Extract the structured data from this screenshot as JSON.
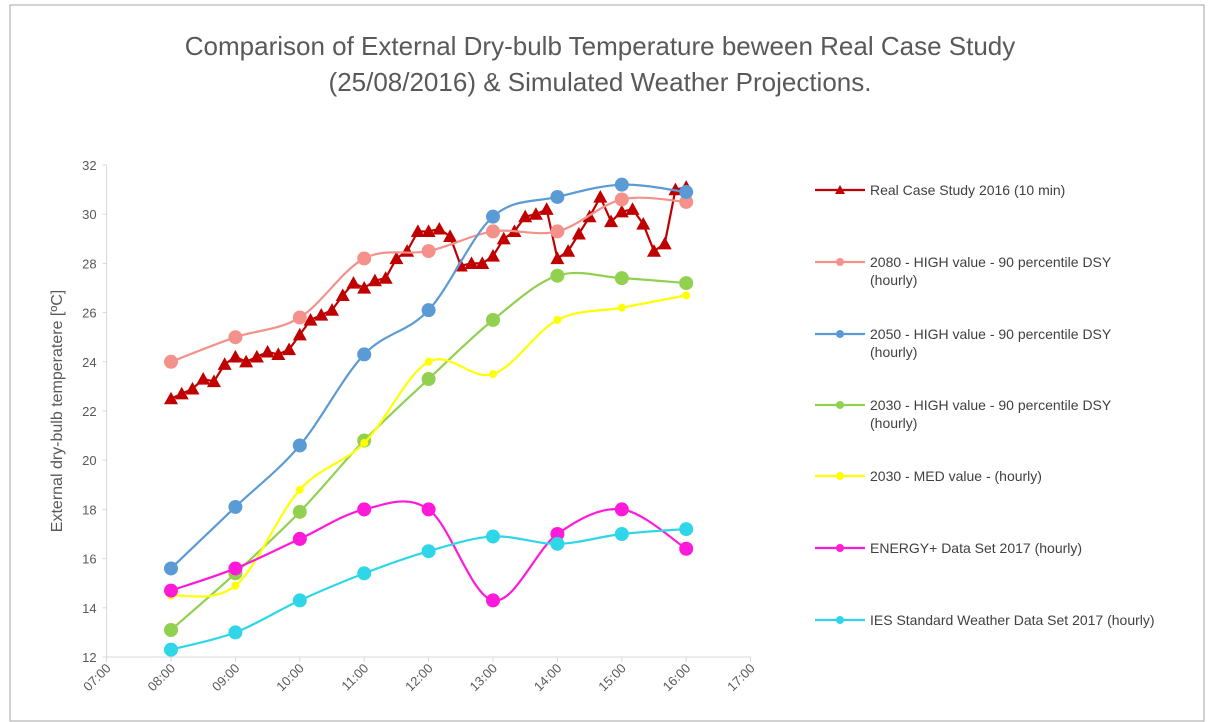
{
  "chart_data": {
    "type": "line",
    "title": "Comparison of External Dry-bulb Temperature beween Real Case Study (25/08/2016) & Simulated Weather Projections.",
    "y_label": "External dry-bulb temperatere [ºC]",
    "xlim": [
      "07:00",
      "17:00"
    ],
    "xticks": [
      "07:00",
      "08:00",
      "09:00",
      "10:00",
      "11:00",
      "12:00",
      "13:00",
      "14:00",
      "15:00",
      "16:00",
      "17:00"
    ],
    "ylim": [
      12,
      32
    ],
    "yticks": [
      12,
      14,
      16,
      18,
      20,
      22,
      24,
      26,
      28,
      30,
      32
    ],
    "grid": false,
    "legend": "right",
    "series": [
      {
        "name": "Real Case Study 2016 (10 min)",
        "color": "#c00000",
        "marker": "triangle",
        "smooth": false,
        "x": [
          "08:00",
          "08:10",
          "08:20",
          "08:30",
          "08:40",
          "08:50",
          "09:00",
          "09:10",
          "09:20",
          "09:30",
          "09:40",
          "09:50",
          "10:00",
          "10:10",
          "10:20",
          "10:30",
          "10:40",
          "10:50",
          "11:00",
          "11:10",
          "11:20",
          "11:30",
          "11:40",
          "11:50",
          "12:00",
          "12:10",
          "12:20",
          "12:30",
          "12:40",
          "12:50",
          "13:00",
          "13:10",
          "13:20",
          "13:30",
          "13:40",
          "13:50",
          "14:00",
          "14:10",
          "14:20",
          "14:30",
          "14:40",
          "14:50",
          "15:00",
          "15:10",
          "15:20",
          "15:30",
          "15:40",
          "15:50",
          "16:00"
        ],
        "values": [
          22.5,
          22.7,
          22.9,
          23.3,
          23.2,
          23.9,
          24.2,
          24.0,
          24.2,
          24.4,
          24.3,
          24.5,
          25.1,
          25.7,
          25.9,
          26.1,
          26.7,
          27.2,
          27.0,
          27.3,
          27.4,
          28.2,
          28.5,
          29.3,
          29.3,
          29.4,
          29.1,
          27.9,
          28.0,
          28.0,
          28.3,
          29.0,
          29.3,
          29.9,
          30.0,
          30.2,
          28.2,
          28.5,
          29.2,
          29.9,
          30.7,
          29.7,
          30.1,
          30.2,
          29.6,
          28.5,
          28.8,
          31.0,
          31.1
        ]
      },
      {
        "name": "2080 - HIGH value - 90 percentile DSY (hourly)",
        "color": "#f4918b",
        "marker": "circle",
        "smooth": true,
        "x": [
          "08:00",
          "09:00",
          "10:00",
          "11:00",
          "12:00",
          "13:00",
          "14:00",
          "15:00",
          "16:00"
        ],
        "values": [
          24.0,
          25.0,
          25.8,
          28.2,
          28.5,
          29.3,
          29.3,
          30.6,
          30.5
        ]
      },
      {
        "name": "2050 - HIGH value - 90 percentile DSY (hourly)",
        "color": "#5b9bd5",
        "marker": "circle",
        "smooth": true,
        "x": [
          "08:00",
          "09:00",
          "10:00",
          "11:00",
          "12:00",
          "13:00",
          "14:00",
          "15:00",
          "16:00"
        ],
        "values": [
          15.6,
          18.1,
          20.6,
          24.3,
          26.1,
          29.9,
          30.7,
          31.2,
          30.9
        ]
      },
      {
        "name": "2030 - HIGH value - 90 percentile DSY (hourly)",
        "color": "#92d050",
        "marker": "circle",
        "smooth": true,
        "x": [
          "08:00",
          "09:00",
          "10:00",
          "11:00",
          "12:00",
          "13:00",
          "14:00",
          "15:00",
          "16:00"
        ],
        "values": [
          13.1,
          15.4,
          17.9,
          20.8,
          23.3,
          25.7,
          27.5,
          27.4,
          27.2
        ]
      },
      {
        "name": "2030 - MED value - (hourly)",
        "color": "#ffff00",
        "marker": "dot",
        "smooth": true,
        "x": [
          "08:00",
          "09:00",
          "10:00",
          "11:00",
          "12:00",
          "13:00",
          "14:00",
          "15:00",
          "16:00"
        ],
        "values": [
          14.5,
          14.9,
          18.8,
          20.7,
          24.0,
          23.5,
          25.7,
          26.2,
          26.7
        ]
      },
      {
        "name": "ENERGY+ Data Set 2017 (hourly)",
        "color": "#ff19d9",
        "marker": "circle",
        "smooth": true,
        "x": [
          "08:00",
          "09:00",
          "10:00",
          "11:00",
          "12:00",
          "13:00",
          "14:00",
          "15:00",
          "16:00"
        ],
        "values": [
          14.7,
          15.6,
          16.8,
          18.0,
          18.0,
          14.3,
          17.0,
          18.0,
          16.4
        ]
      },
      {
        "name": "IES Standard Weather Data Set 2017 (hourly)",
        "color": "#2fd6e8",
        "marker": "circle",
        "smooth": true,
        "x": [
          "08:00",
          "09:00",
          "10:00",
          "11:00",
          "12:00",
          "13:00",
          "14:00",
          "15:00",
          "16:00"
        ],
        "values": [
          12.3,
          13.0,
          14.3,
          15.4,
          16.3,
          16.9,
          16.6,
          17.0,
          17.2
        ]
      }
    ]
  }
}
